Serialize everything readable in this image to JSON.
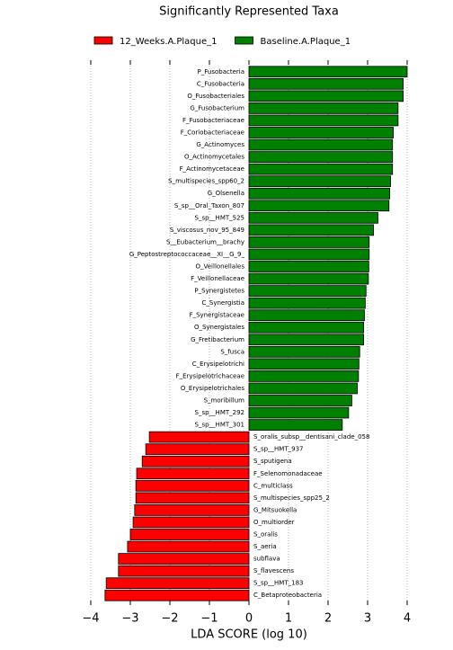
{
  "chart_data": {
    "type": "bar",
    "orientation": "horizontal",
    "title": "Significantly Represented Taxa",
    "xlabel": "LDA SCORE (log 10)",
    "categories": [
      "P_Fusobacteria",
      "C_Fusobacteria",
      "O_Fusobacteriales",
      "G_Fusobacterium",
      "F_Fusobacteriaceae",
      "F_Coriobacteriaceae",
      "G_Actinomyces",
      "O_Actinomycetales",
      "F_Actinomycetaceae",
      "S_multispecies_spp60_2",
      "G_Olsenella",
      "S_sp__Oral_Taxon_807",
      "S_sp__HMT_525",
      "S_viscosus_nov_95_849",
      "S__Eubacterium__brachy",
      "G_Peptostreptococcaceae__XI__G_9_",
      "O_Veillonellales",
      "F_Veillonellaceae",
      "P_Synergistetes",
      "C_Synergistia",
      "F_Synergistaceae",
      "O_Synergistales",
      "G_Fretibacterium",
      "S_fusca",
      "C_Erysipelotrichi",
      "F_Erysipelotrichaceae",
      "O_Erysipelotrichales",
      "S_moribillum",
      "S_sp__HMT_292",
      "S_sp__HMT_301",
      "S_oralis_subsp__dentisani_clade_058",
      "S_sp__HMT_937",
      "S_sputigena",
      "F_Selenomonadaceae",
      "C_multiclass",
      "S_multispecies_spp25_2",
      "G_Mitsuokella",
      "O_multiorder",
      "S_oralis",
      "S_aeria",
      "subflava",
      "S_flavescens",
      "S_sp__HMT_183",
      "C_Betaproteobacteria"
    ],
    "series": [
      {
        "name": "12_Weeks.A.Plaque_1",
        "color": "#ff0000",
        "values": [
          null,
          null,
          null,
          null,
          null,
          null,
          null,
          null,
          null,
          null,
          null,
          null,
          null,
          null,
          null,
          null,
          null,
          null,
          null,
          null,
          null,
          null,
          null,
          null,
          null,
          null,
          null,
          null,
          null,
          null,
          -2.52,
          -2.61,
          -2.7,
          -2.84,
          -2.86,
          -2.86,
          -2.89,
          -2.93,
          -3.0,
          -3.07,
          -3.3,
          -3.3,
          -3.61,
          -3.64
        ]
      },
      {
        "name": "Baseline.A.Plaque_1",
        "color": "#008000",
        "values": [
          4.0,
          3.9,
          3.9,
          3.77,
          3.77,
          3.65,
          3.63,
          3.63,
          3.63,
          3.58,
          3.56,
          3.54,
          3.26,
          3.15,
          3.04,
          3.04,
          3.03,
          3.02,
          2.96,
          2.94,
          2.92,
          2.9,
          2.9,
          2.8,
          2.78,
          2.77,
          2.74,
          2.6,
          2.52,
          2.36,
          null,
          null,
          null,
          null,
          null,
          null,
          null,
          null,
          null,
          null,
          null,
          null,
          null,
          null
        ]
      }
    ],
    "xlim": [
      -4,
      4
    ],
    "xticks": [
      {
        "value": -4,
        "label": "−4"
      },
      {
        "value": -3,
        "label": "−3"
      },
      {
        "value": -2,
        "label": "−2"
      },
      {
        "value": -1,
        "label": "−1"
      },
      0,
      1,
      2,
      3,
      4
    ],
    "grid": true,
    "legend": "top"
  }
}
